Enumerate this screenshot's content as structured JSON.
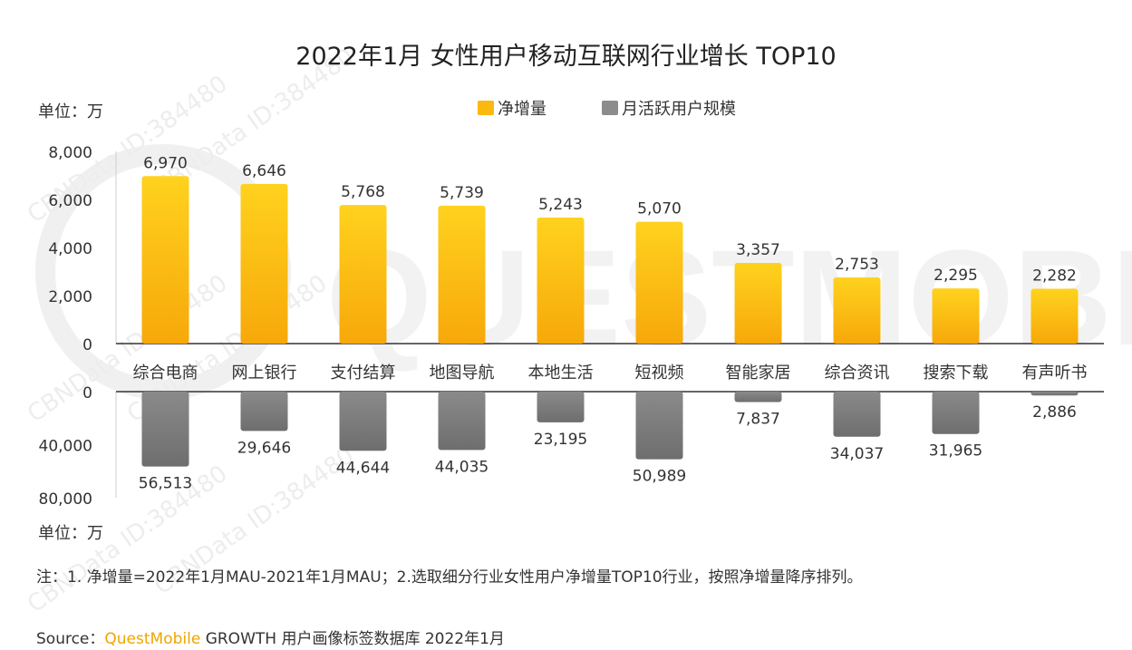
{
  "title": "2022年1月 女性用户移动互联网行业增长 TOP10",
  "unit_top": "单位：万",
  "unit_bottom": "单位：万",
  "legend": {
    "net_growth": "净增量",
    "mau": "月活跃用户规模"
  },
  "watermark": {
    "logo_text": "QUESTMOBILE",
    "id_text": "CBNData ID:384480"
  },
  "note": "注：1. 净增量=2022年1月MAU-2021年1月MAU；2.选取细分行业女性用户净增量TOP10行业，按照净增量降序排列。",
  "source": {
    "prefix": "Source：",
    "brand": "QuestMobile",
    "suffix": " GROWTH 用户画像标签数据库 2022年1月"
  },
  "colors": {
    "bar_top": "#f9b00a",
    "bar_top_light": "#ffd73a",
    "bar_bottom": "#808080",
    "bar_bottom_light": "#a6a6a6",
    "axis": "#333333"
  },
  "chart_data": [
    {
      "type": "bar",
      "name": "净增量",
      "categories": [
        "综合电商",
        "网上银行",
        "支付结算",
        "地图导航",
        "本地生活",
        "短视频",
        "智能家居",
        "综合资讯",
        "搜索下载",
        "有声听书"
      ],
      "values": [
        6970,
        6646,
        5768,
        5739,
        5243,
        5070,
        3357,
        2753,
        2295,
        2282
      ],
      "labels": [
        "6,970",
        "6,646",
        "5,768",
        "5,739",
        "5,243",
        "5,070",
        "3,357",
        "2,753",
        "2,295",
        "2,282"
      ],
      "ylim": [
        0,
        8000
      ],
      "ticks": [
        "8,000",
        "6,000",
        "4,000",
        "2,000",
        "0"
      ],
      "tick_values": [
        8000,
        6000,
        4000,
        2000,
        0
      ],
      "ylabel": "单位：万"
    },
    {
      "type": "bar",
      "name": "月活跃用户规模",
      "orientation": "downward",
      "categories": [
        "综合电商",
        "网上银行",
        "支付结算",
        "地图导航",
        "本地生活",
        "短视频",
        "智能家居",
        "综合资讯",
        "搜索下载",
        "有声听书"
      ],
      "values": [
        56513,
        29646,
        44644,
        44035,
        23195,
        50989,
        7837,
        34037,
        31965,
        2886
      ],
      "labels": [
        "56,513",
        "29,646",
        "44,644",
        "44,035",
        "23,195",
        "50,989",
        "7,837",
        "34,037",
        "31,965",
        "2,886"
      ],
      "ylim": [
        0,
        80000
      ],
      "ticks": [
        "0",
        "40,000",
        "80,000"
      ],
      "tick_values": [
        0,
        40000,
        80000
      ],
      "ylabel": "单位：万"
    }
  ]
}
